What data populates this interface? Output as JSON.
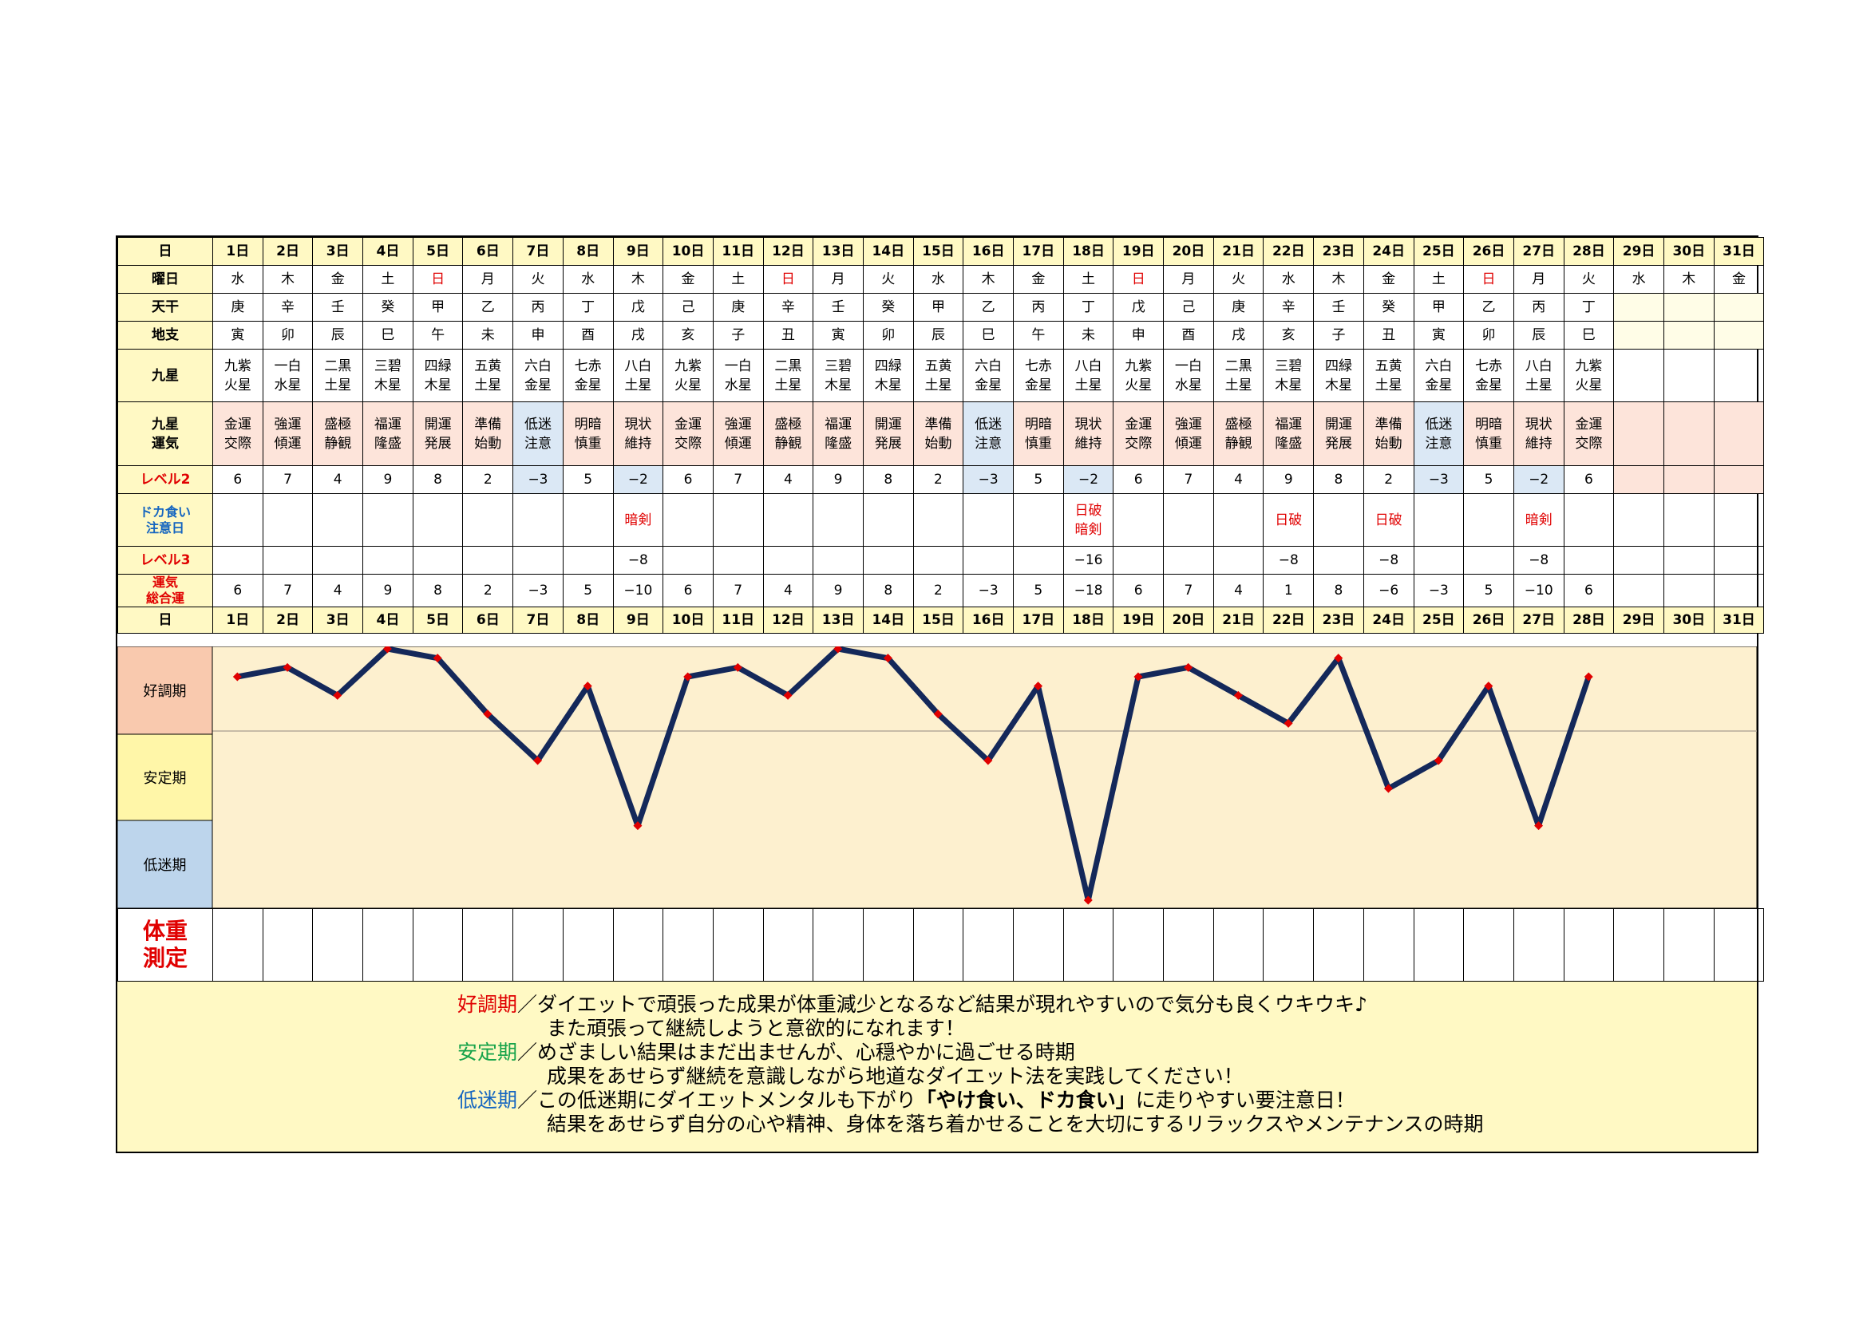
{
  "labels": {
    "day": "日",
    "weekday": "曜日",
    "tenkan": "天干",
    "chishi": "地支",
    "kyusei": "九星",
    "unki": "九星\n運気",
    "level2": "レベル2",
    "doka": "ドカ食い\n注意日",
    "level3": "レベル3",
    "total": "運気\n総合運"
  },
  "days": [
    "1日",
    "2日",
    "3日",
    "4日",
    "5日",
    "6日",
    "7日",
    "8日",
    "9日",
    "10日",
    "11日",
    "12日",
    "13日",
    "14日",
    "15日",
    "16日",
    "17日",
    "18日",
    "19日",
    "20日",
    "21日",
    "22日",
    "23日",
    "24日",
    "25日",
    "26日",
    "27日",
    "28日",
    "29日",
    "30日",
    "31日"
  ],
  "weekdays": [
    "水",
    "木",
    "金",
    "土",
    "日",
    "月",
    "火",
    "水",
    "木",
    "金",
    "土",
    "日",
    "月",
    "火",
    "水",
    "木",
    "金",
    "土",
    "日",
    "月",
    "火",
    "水",
    "木",
    "金",
    "土",
    "日",
    "月",
    "火",
    "水",
    "木",
    "金"
  ],
  "tenkan": [
    "庚",
    "辛",
    "壬",
    "癸",
    "甲",
    "乙",
    "丙",
    "丁",
    "戊",
    "己",
    "庚",
    "辛",
    "壬",
    "癸",
    "甲",
    "乙",
    "丙",
    "丁",
    "戊",
    "己",
    "庚",
    "辛",
    "壬",
    "癸",
    "甲",
    "乙",
    "丙",
    "丁",
    "",
    "",
    ""
  ],
  "chishi": [
    "寅",
    "卯",
    "辰",
    "巳",
    "午",
    "未",
    "申",
    "酉",
    "戌",
    "亥",
    "子",
    "丑",
    "寅",
    "卯",
    "辰",
    "巳",
    "午",
    "未",
    "申",
    "酉",
    "戌",
    "亥",
    "子",
    "丑",
    "寅",
    "卯",
    "辰",
    "巳",
    "",
    "",
    ""
  ],
  "kyusei": [
    "九紫\n火星",
    "一白\n水星",
    "二黒\n土星",
    "三碧\n木星",
    "四緑\n木星",
    "五黄\n土星",
    "六白\n金星",
    "七赤\n金星",
    "八白\n土星",
    "九紫\n火星",
    "一白\n水星",
    "二黒\n土星",
    "三碧\n木星",
    "四緑\n木星",
    "五黄\n土星",
    "六白\n金星",
    "七赤\n金星",
    "八白\n土星",
    "九紫\n火星",
    "一白\n水星",
    "二黒\n土星",
    "三碧\n木星",
    "四緑\n木星",
    "五黄\n土星",
    "六白\n金星",
    "七赤\n金星",
    "八白\n土星",
    "九紫\n火星",
    "",
    "",
    ""
  ],
  "unki": [
    "金運\n交際",
    "強運\n傾運",
    "盛極\n静観",
    "福運\n隆盛",
    "開運\n発展",
    "準備\n始動",
    "低迷\n注意",
    "明暗\n慎重",
    "現状\n維持",
    "金運\n交際",
    "強運\n傾運",
    "盛極\n静観",
    "福運\n隆盛",
    "開運\n発展",
    "準備\n始動",
    "低迷\n注意",
    "明暗\n慎重",
    "現状\n維持",
    "金運\n交際",
    "強運\n傾運",
    "盛極\n静観",
    "福運\n隆盛",
    "開運\n発展",
    "準備\n始動",
    "低迷\n注意",
    "明暗\n慎重",
    "現状\n維持",
    "金運\n交際",
    "",
    "",
    ""
  ],
  "level2": [
    "6",
    "7",
    "4",
    "9",
    "8",
    "2",
    "−3",
    "5",
    "−2",
    "6",
    "7",
    "4",
    "9",
    "8",
    "2",
    "−3",
    "5",
    "−2",
    "6",
    "7",
    "4",
    "9",
    "8",
    "2",
    "−3",
    "5",
    "−2",
    "6",
    "",
    "",
    ""
  ],
  "doka": [
    "",
    "",
    "",
    "",
    "",
    "",
    "",
    "",
    "暗剣",
    "",
    "",
    "",
    "",
    "",
    "",
    "",
    "",
    "日破\n暗剣",
    "",
    "",
    "",
    "日破",
    "",
    "日破",
    "",
    "",
    "暗剣",
    "",
    "",
    "",
    ""
  ],
  "level3": [
    "",
    "",
    "",
    "",
    "",
    "",
    "",
    "",
    "−8",
    "",
    "",
    "",
    "",
    "",
    "",
    "",
    "",
    "−16",
    "",
    "",
    "",
    "−8",
    "",
    "−8",
    "",
    "",
    "−8",
    "",
    "",
    "",
    ""
  ],
  "total": [
    "6",
    "7",
    "4",
    "9",
    "8",
    "2",
    "−3",
    "5",
    "−10",
    "6",
    "7",
    "4",
    "9",
    "8",
    "2",
    "−3",
    "5",
    "−18",
    "6",
    "7",
    "4",
    "1",
    "8",
    "−6",
    "−3",
    "5",
    "−10",
    "6",
    "",
    "",
    ""
  ],
  "chart_data": {
    "type": "line",
    "x": [
      "1日",
      "2日",
      "3日",
      "4日",
      "5日",
      "6日",
      "7日",
      "8日",
      "9日",
      "10日",
      "11日",
      "12日",
      "13日",
      "14日",
      "15日",
      "16日",
      "17日",
      "18日",
      "19日",
      "20日",
      "21日",
      "22日",
      "23日",
      "24日",
      "25日",
      "26日",
      "27日",
      "28日"
    ],
    "values": [
      6,
      7,
      4,
      9,
      8,
      2,
      -3,
      5,
      -10,
      6,
      7,
      4,
      9,
      8,
      2,
      -3,
      5,
      -18,
      6,
      7,
      4,
      1,
      8,
      -6,
      -3,
      5,
      -10,
      6
    ],
    "bands": [
      "好調期",
      "安定期",
      "低迷期"
    ],
    "ylim": [
      -18,
      9
    ],
    "color": "#14285a",
    "marker_color": "#e00000",
    "band_colors": [
      "#f9c9ae",
      "#fff6a8",
      "#bdd5ec"
    ],
    "plot_bg": "#fdf0cf",
    "grid": false
  },
  "weight_label": "体重\n測定",
  "legend": {
    "good_key": "好調期",
    "good_1": "／ダイエットで頑張った成果が体重減少となるなど結果が現れやすいので気分も良くウキウキ♪",
    "good_2": "また頑張って継続しようと意欲的になれます！",
    "stable_key": "安定期",
    "stable_1": "／めざましい結果はまだ出ませんが、心穏やかに過ごせる時期",
    "stable_2": "成果をあせらず継続を意識しながら地道なダイエット法を実践してください！",
    "low_key": "低迷期",
    "low_1a": "／この低迷期にダイエットメンタルも下がり",
    "low_1b": "「やけ食い、ドカ食い」",
    "low_1c": "に走りやすい要注意日！",
    "low_2": "結果をあせらず自分の心や精神、身体を落ち着かせることを大切にするリラックスやメンテナンスの時期"
  }
}
